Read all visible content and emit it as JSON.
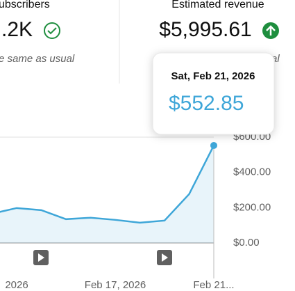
{
  "cards": [
    {
      "title": "ubscribers",
      "value": ".2K",
      "note": "e same as usual"
    },
    {
      "title": "Estimated revenue",
      "value": "$5,995.61",
      "note": "al"
    }
  ],
  "tooltip": {
    "date": "Sat, Feb 21, 2026",
    "value": "$552.85"
  },
  "chart_data": {
    "type": "line",
    "categories": [
      null,
      "2026",
      null,
      null,
      null,
      "Feb 17, 2026",
      null,
      null,
      null,
      "Feb 21..."
    ],
    "series": [
      {
        "name": "Estimated revenue",
        "color": "#3ea6d8",
        "values": [
          166,
          198,
          186,
          135,
          143,
          131,
          115,
          127,
          277,
          552.85
        ]
      }
    ],
    "ylim": [
      0,
      600
    ],
    "yticks": [
      {
        "value": 0,
        "label": "$0.00"
      },
      {
        "value": 200,
        "label": "$200.00"
      },
      {
        "value": 400,
        "label": "$400.00"
      },
      {
        "value": 600,
        "label": "$600.00"
      }
    ],
    "grid": false
  }
}
